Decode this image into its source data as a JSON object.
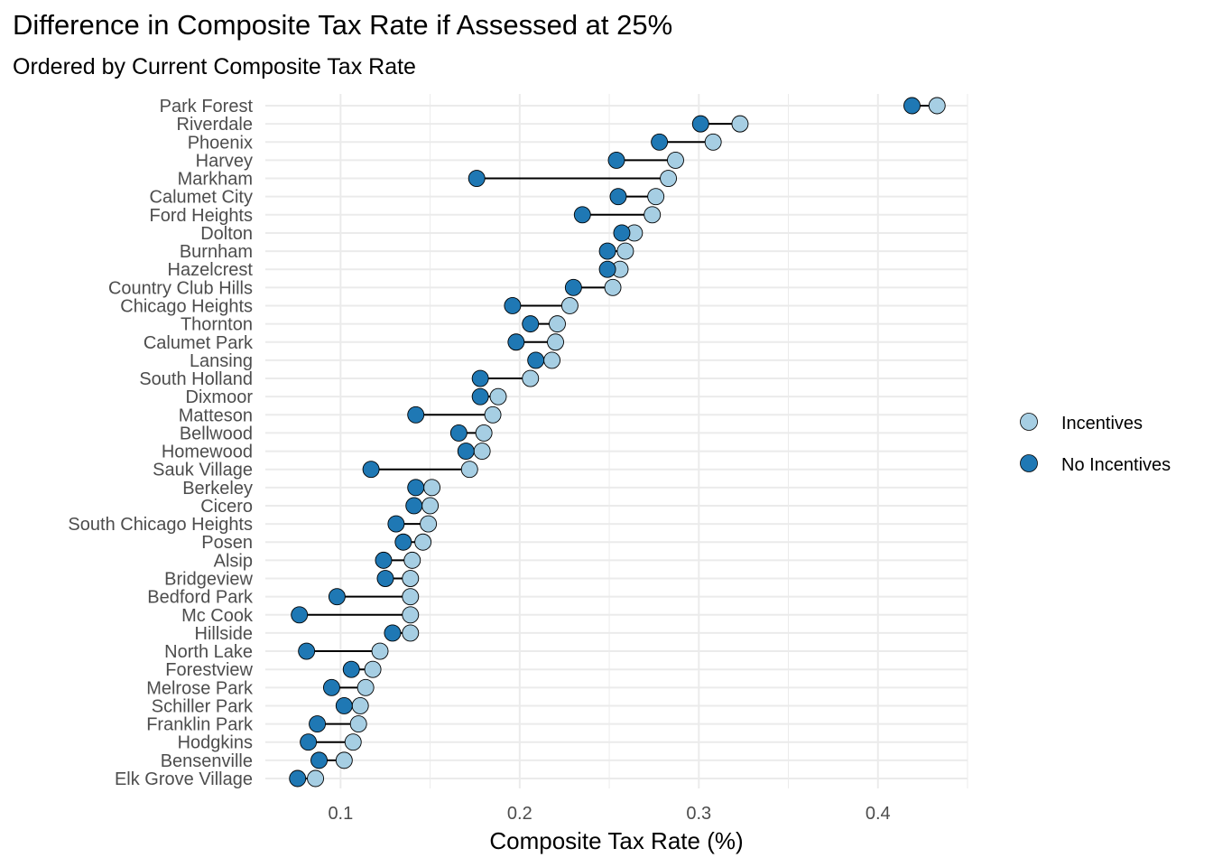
{
  "chart_data": {
    "type": "dumbbell",
    "title": "Difference in Composite Tax Rate if Assessed at 25%",
    "subtitle": "Ordered by Current Composite Tax Rate",
    "xlabel": "Composite Tax Rate (%)",
    "ylabel": "",
    "xlim": [
      0.058,
      0.45
    ],
    "x_major_ticks": [
      0.1,
      0.2,
      0.3,
      0.4
    ],
    "x_tick_labels": [
      "0.1",
      "0.2",
      "0.3",
      "0.4"
    ],
    "x_minor_ticks": [
      0.15,
      0.25,
      0.35,
      0.45
    ],
    "grid": true,
    "legend": {
      "position": "right",
      "entries": [
        {
          "name": "Incentives",
          "color": "#A6CEE3"
        },
        {
          "name": "No Incentives",
          "color": "#1F78B4"
        }
      ]
    },
    "categories": [
      "Park Forest",
      "Riverdale",
      "Phoenix",
      "Harvey",
      "Markham",
      "Calumet City",
      "Ford Heights",
      "Dolton",
      "Burnham",
      "Hazelcrest",
      "Country Club Hills",
      "Chicago Heights",
      "Thornton",
      "Calumet Park",
      "Lansing",
      "South Holland",
      "Dixmoor",
      "Matteson",
      "Bellwood",
      "Homewood",
      "Sauk Village",
      "Berkeley",
      "Cicero",
      "South Chicago Heights",
      "Posen",
      "Alsip",
      "Bridgeview",
      "Bedford Park",
      "Mc Cook",
      "Hillside",
      "North Lake",
      "Forestview",
      "Melrose Park",
      "Schiller Park",
      "Franklin Park",
      "Hodgkins",
      "Bensenville",
      "Elk Grove Village"
    ],
    "series": [
      {
        "name": "Incentives",
        "color": "#A6CEE3",
        "values": [
          0.433,
          0.323,
          0.308,
          0.287,
          0.283,
          0.276,
          0.274,
          0.264,
          0.259,
          0.256,
          0.252,
          0.228,
          0.221,
          0.22,
          0.218,
          0.206,
          0.188,
          0.185,
          0.18,
          0.179,
          0.172,
          0.151,
          0.15,
          0.149,
          0.146,
          0.14,
          0.139,
          0.139,
          0.139,
          0.139,
          0.122,
          0.118,
          0.114,
          0.111,
          0.11,
          0.107,
          0.102,
          0.086
        ]
      },
      {
        "name": "No Incentives",
        "color": "#1F78B4",
        "values": [
          0.419,
          0.301,
          0.278,
          0.254,
          0.176,
          0.255,
          0.235,
          0.257,
          0.249,
          0.249,
          0.23,
          0.196,
          0.206,
          0.198,
          0.209,
          0.178,
          0.178,
          0.142,
          0.166,
          0.17,
          0.117,
          0.142,
          0.141,
          0.131,
          0.135,
          0.124,
          0.125,
          0.098,
          0.077,
          0.129,
          0.081,
          0.106,
          0.095,
          0.102,
          0.087,
          0.082,
          0.088,
          0.076
        ]
      }
    ]
  }
}
